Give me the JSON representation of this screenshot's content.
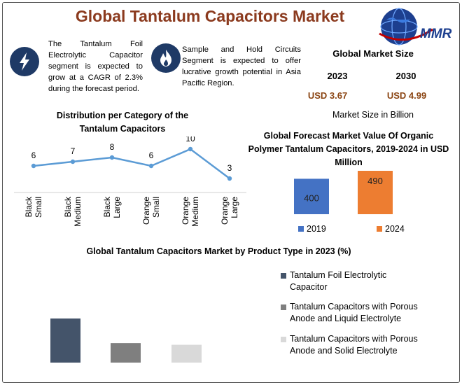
{
  "header": {
    "title": "Global Tantalum Capacitors Market",
    "logo_text": "MMR"
  },
  "notes": [
    {
      "icon": "lightning-icon",
      "text": "The Tantalum Foil Electrolytic Capacitor segment is expected to grow at a CAGR of 2.3% during the forecast period."
    },
    {
      "icon": "flame-icon",
      "text": "Sample and Hold Circuits Segment is expected to offer lucrative growth potential in Asia Pacific Region."
    }
  ],
  "market_size": {
    "title": "Global Market Size",
    "year_start": "2023",
    "year_end": "2030",
    "value_start": "USD 3.67",
    "value_end": "USD 4.99",
    "note": "Market Size in Billion"
  },
  "colors": {
    "title": "#8b3a1e",
    "icon_bg": "#1f3a66",
    "line": "#5b9bd5",
    "bar_2019": "#4472c4",
    "bar_2024": "#ed7d31",
    "dark_slate": "#44546a",
    "gray": "#7f7f7f",
    "light_gray": "#d9d9d9"
  },
  "chart_data": [
    {
      "type": "line",
      "title": "Distribution per Category of the Tantalum Capacitors",
      "categories": [
        "Black Small",
        "Black Medium",
        "Black Large",
        "Orange Small",
        "Orange Medium",
        "Orange Large"
      ],
      "category_lines": [
        [
          "Black",
          "Small"
        ],
        [
          "Black",
          "Medium"
        ],
        [
          "Black",
          "Large"
        ],
        [
          "Orange",
          "Small"
        ],
        [
          "Orange",
          "Medium"
        ],
        [
          "Orange",
          "Large"
        ]
      ],
      "values": [
        6,
        7,
        8,
        6,
        10,
        3
      ],
      "value_labels": [
        "6",
        "7",
        "8",
        "6",
        "10",
        "3"
      ],
      "ylim": [
        0,
        12
      ]
    },
    {
      "type": "bar",
      "title": "Global Forecast Market Value Of Organic Polymer Tantalum Capacitors, 2019-2024 in USD Million",
      "categories": [
        "2019",
        "2024"
      ],
      "values": [
        400,
        490
      ],
      "value_labels": [
        "400",
        "490"
      ],
      "legend": [
        "2019",
        "2024"
      ],
      "legend_position": "bottom"
    },
    {
      "type": "bar",
      "title": "Global Tantalum Capacitors Market by Product Type in 2023 (%)",
      "categories": [
        "Tantalum Foil Electrolytic Capacitor",
        "Tantalum Capacitors with Porous Anode and Liquid Electrolyte",
        "Tantalum Capacitors with Porous Anode and Solid Electrolyte"
      ],
      "legend_lines": [
        [
          "Tantalum Foil Electrolytic",
          "Capacitor"
        ],
        [
          "Tantalum Capacitors with Porous",
          "Anode and Liquid Electrolyte"
        ],
        [
          "Tantalum Capacitors with Porous",
          "Anode and Solid Electrolyte"
        ]
      ],
      "values": [
        52,
        23,
        21
      ],
      "legend_position": "right"
    }
  ]
}
